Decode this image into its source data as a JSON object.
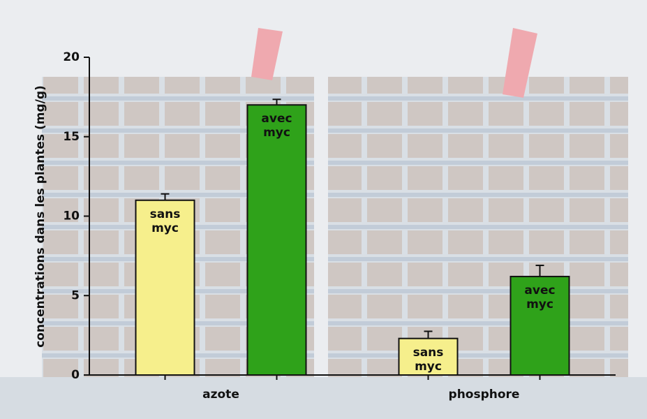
{
  "chart_data": {
    "type": "bar",
    "y_label": "concentrations dans les plantes (mg/g)",
    "categories": [
      "azote",
      "phosphore"
    ],
    "series": [
      {
        "name": "sans myc",
        "color": "#f6ef8c",
        "values": [
          11.0,
          2.3
        ],
        "errors": [
          0.4,
          0.45
        ]
      },
      {
        "name": "avec myc",
        "color": "#2fa21a",
        "values": [
          17.0,
          6.2
        ],
        "errors": [
          0.35,
          0.7
        ]
      }
    ],
    "ylim": [
      0,
      20
    ],
    "yticks": [
      0,
      5,
      10,
      15,
      20
    ]
  }
}
